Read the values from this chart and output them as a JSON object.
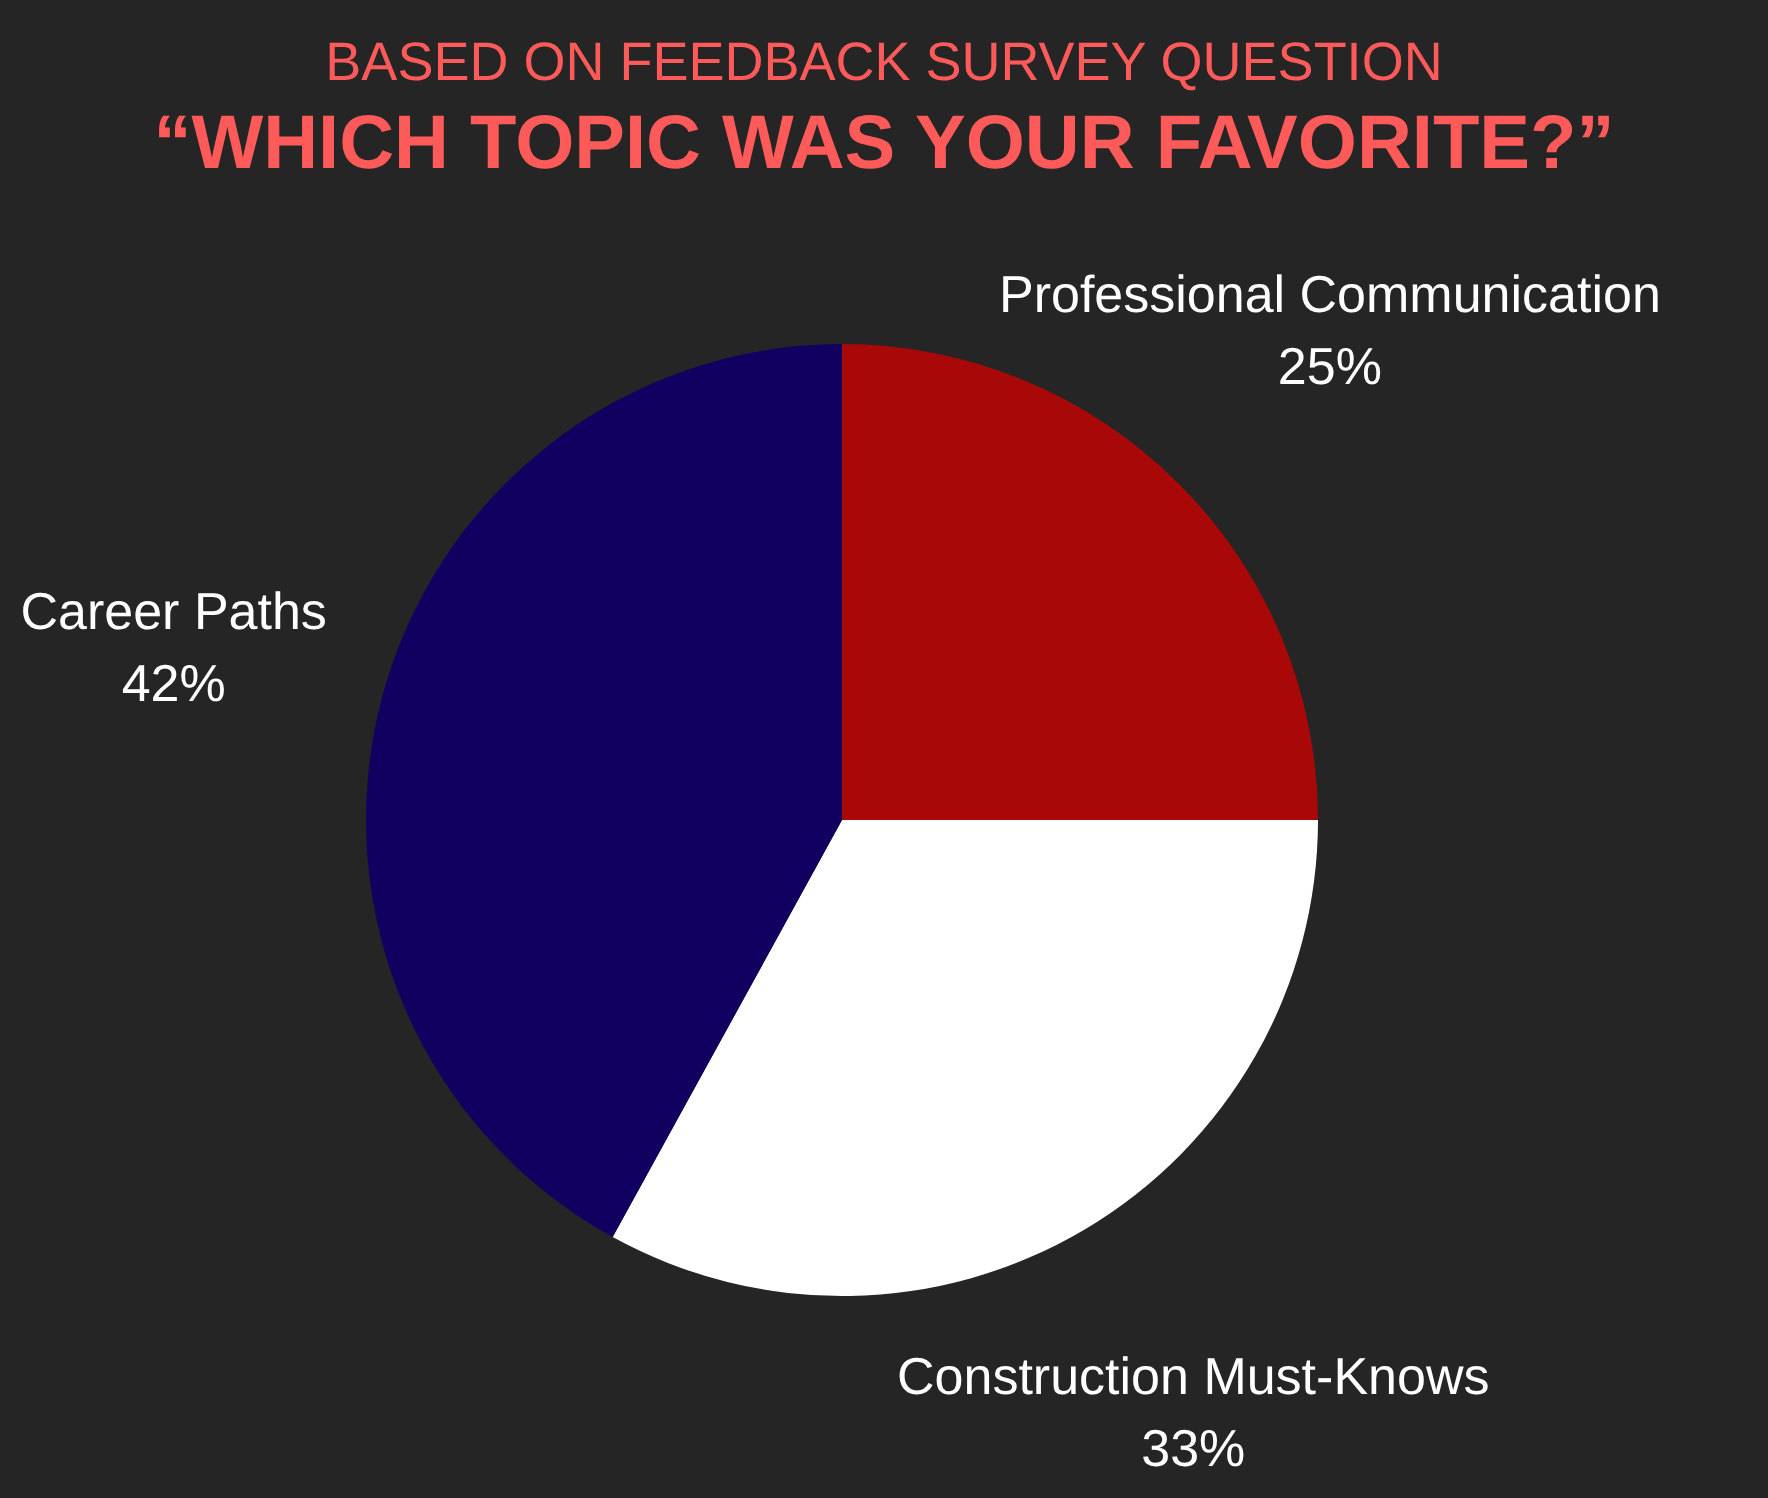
{
  "chart_data": {
    "type": "pie",
    "subtitle": "BASED ON FEEDBACK SURVEY QUESTION",
    "title": "“WHICH TOPIC WAS YOUR FAVORITE?”",
    "categories": [
      "Professional Communication",
      "Construction Must-Knows",
      "Career Paths"
    ],
    "values": [
      25,
      33,
      42
    ],
    "colors": [
      "#a80808",
      "#ffffff",
      "#120060"
    ],
    "value_labels": [
      "25%",
      "33%",
      "42%"
    ],
    "legend": false
  }
}
